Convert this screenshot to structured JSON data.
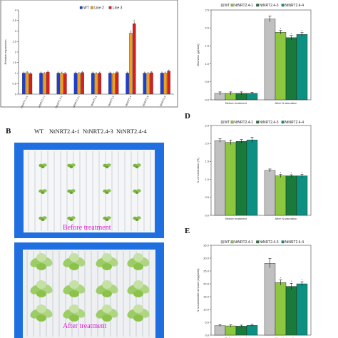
{
  "panel_labels": {
    "b": "B",
    "d": "D",
    "e": "E"
  },
  "photo": {
    "genotype_labels": [
      "WT",
      "NtNRT2.4-1",
      "NtNRT2.4-3",
      "NtNRT2.4-4"
    ],
    "top_caption": "Before treatment",
    "bottom_caption": "After treatment"
  },
  "colors": {
    "wt": "#c0c0c0",
    "line1": "#8dc63f",
    "line3": "#1a7a3a",
    "line4": "#0d8f82",
    "a_wt": "#1f3fd0",
    "a_line2": "#f0a020",
    "a_line3": "#d81e1e",
    "tray": "#1f6fe0"
  },
  "chart_data": [
    {
      "id": "A",
      "type": "bar",
      "ylabel": "Relative expression",
      "ylim": [
        0,
        4
      ],
      "yticks": [
        "0",
        "0.5",
        "1",
        "1.5",
        "2",
        "2.5",
        "3",
        "3.5",
        "4"
      ],
      "categories": [
        "NtNRT1.1-s",
        "NtNRT1.1-t",
        "NtNRT1.5-s",
        "NtNRT1.5-t",
        "NtNRT2.1",
        "NtNRT2.3",
        "NtNRT2.4",
        "NtNRT2.5",
        "NtNRT2.6"
      ],
      "legend": [
        "WT",
        "Line 2",
        "Line 3"
      ],
      "series": [
        {
          "name": "WT",
          "values": [
            1.0,
            1.0,
            1.0,
            1.0,
            1.0,
            1.0,
            1.0,
            1.0,
            1.0
          ],
          "err": [
            0.05,
            0.05,
            0.05,
            0.05,
            0.05,
            0.05,
            0.05,
            0.05,
            0.05
          ]
        },
        {
          "name": "Line 2",
          "values": [
            1.02,
            0.98,
            1.0,
            0.98,
            0.97,
            0.96,
            2.9,
            0.98,
            1.0
          ],
          "err": [
            0.05,
            0.05,
            0.05,
            0.05,
            0.05,
            0.05,
            0.1,
            0.05,
            0.05
          ]
        },
        {
          "name": "Line 3",
          "values": [
            0.97,
            1.05,
            0.98,
            1.03,
            1.0,
            1.03,
            3.35,
            1.02,
            1.1
          ],
          "err": [
            0.05,
            0.05,
            0.05,
            0.05,
            0.05,
            0.05,
            0.08,
            0.05,
            0.05
          ]
        }
      ],
      "significance": [
        "",
        "",
        "",
        "",
        "",
        "",
        "*",
        "",
        ""
      ]
    },
    {
      "id": "C",
      "type": "bar",
      "ylabel": "Biomass (g/plant)",
      "ylim": [
        0,
        2.5
      ],
      "yticks": [
        "0.0",
        "0.5",
        "1.0",
        "1.5",
        "2.0",
        "2.5"
      ],
      "categories": [
        "Before treatment",
        "After N starvation"
      ],
      "legend": [
        "WT",
        "NtNRT2.4-1",
        "NtNRT2.4-3",
        "NtNRT2.4-4"
      ],
      "series": [
        {
          "name": "WT",
          "values": [
            0.18,
            2.25
          ],
          "err": [
            0.04,
            0.08
          ]
        },
        {
          "name": "NtNRT2.4-1",
          "values": [
            0.18,
            1.88
          ],
          "err": [
            0.04,
            0.05
          ]
        },
        {
          "name": "NtNRT2.4-3",
          "values": [
            0.18,
            1.73
          ],
          "err": [
            0.04,
            0.06
          ]
        },
        {
          "name": "NtNRT2.4-4",
          "values": [
            0.18,
            1.82
          ],
          "err": [
            0.03,
            0.05
          ]
        }
      ],
      "significance": [
        [
          "",
          "",
          "",
          ""
        ],
        [
          "",
          "*",
          "*",
          "*"
        ]
      ]
    },
    {
      "id": "D",
      "type": "bar",
      "ylabel": "N concentration (%)",
      "ylim": [
        0,
        2.5
      ],
      "yticks": [
        "0.0",
        "0.5",
        "1.0",
        "1.5",
        "2.0",
        "2.5"
      ],
      "categories": [
        "Before treatment",
        "After N starvation"
      ],
      "legend": [
        "WT",
        "NtNRT2.4-1",
        "NtNRT2.4-3",
        "NtNRT2.4-4"
      ],
      "series": [
        {
          "name": "WT",
          "values": [
            2.08,
            1.25
          ],
          "err": [
            0.05,
            0.04
          ]
        },
        {
          "name": "NtNRT2.4-1",
          "values": [
            2.03,
            1.1
          ],
          "err": [
            0.06,
            0.04
          ]
        },
        {
          "name": "NtNRT2.4-3",
          "values": [
            2.06,
            1.1
          ],
          "err": [
            0.05,
            0.03
          ]
        },
        {
          "name": "NtNRT2.4-4",
          "values": [
            2.1,
            1.1
          ],
          "err": [
            0.07,
            0.04
          ]
        }
      ],
      "significance": [
        [
          "",
          "",
          "",
          ""
        ],
        [
          "",
          "*",
          "*",
          "*"
        ]
      ]
    },
    {
      "id": "E",
      "type": "bar",
      "ylabel": "N accumulative amount (mg/plant)",
      "ylim": [
        0,
        35
      ],
      "yticks": [
        "0.0",
        "5.0",
        "10.0",
        "15.0",
        "20.0",
        "25.0",
        "30.0",
        "35.0"
      ],
      "categories": [
        "Before treatment",
        "After N starvation"
      ],
      "legend": [
        "WT",
        "NtNRT2.4-1",
        "NtNRT2.4-3",
        "NtNRT2.4-4"
      ],
      "series": [
        {
          "name": "WT",
          "values": [
            3.7,
            28.0
          ],
          "err": [
            0.4,
            1.8
          ]
        },
        {
          "name": "NtNRT2.4-1",
          "values": [
            3.6,
            20.5
          ],
          "err": [
            0.4,
            1.0
          ]
        },
        {
          "name": "NtNRT2.4-3",
          "values": [
            3.5,
            19.0
          ],
          "err": [
            0.4,
            1.2
          ]
        },
        {
          "name": "NtNRT2.4-4",
          "values": [
            3.8,
            20.0
          ],
          "err": [
            0.4,
            0.8
          ]
        }
      ],
      "significance": [
        [
          "",
          "",
          "",
          ""
        ],
        [
          "",
          "*",
          "*",
          "*"
        ]
      ]
    }
  ]
}
